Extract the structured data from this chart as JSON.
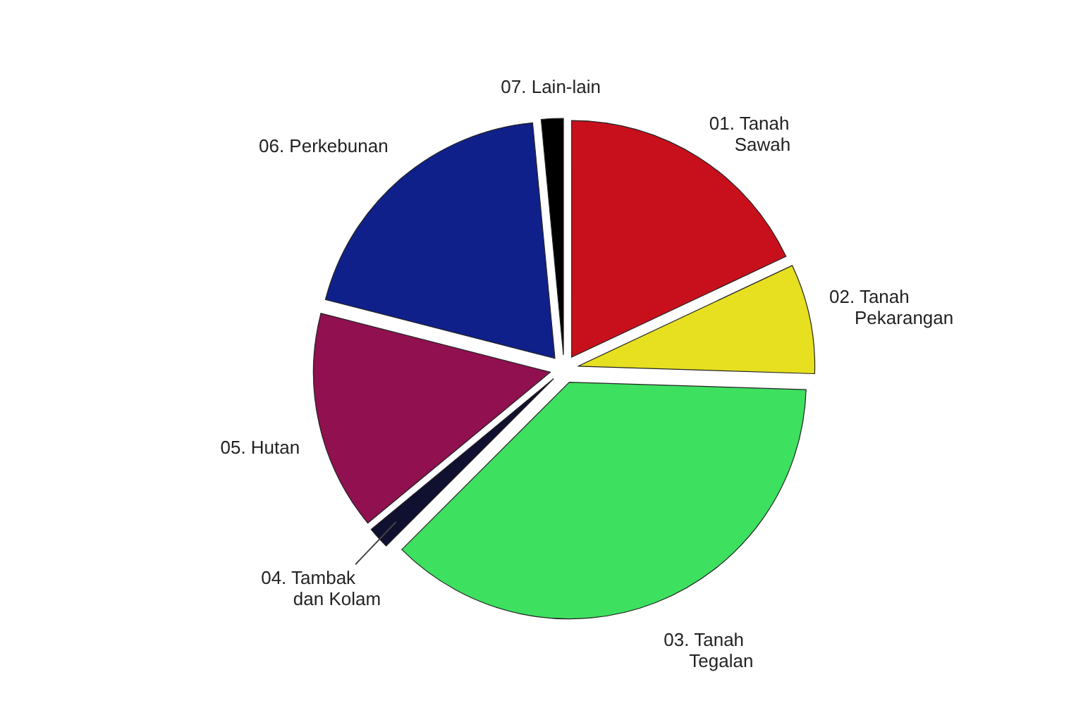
{
  "chart_data": {
    "type": "pie",
    "categories": [
      "01.  Tanah Sawah",
      "02.  Tanah Pekarangan",
      "03.  Tanah Tegalan",
      "04.  Tambak dan Kolam",
      "05.  Hutan",
      "06.  Perkebunan",
      "07.  Lain-lain"
    ],
    "values": [
      18,
      7.5,
      37,
      1.5,
      15,
      19.5,
      1.5
    ],
    "colors": [
      "#c8101c",
      "#e6e020",
      "#3ee060",
      "#101030",
      "#901050",
      "#10208a",
      "#000000"
    ],
    "legend": false
  }
}
